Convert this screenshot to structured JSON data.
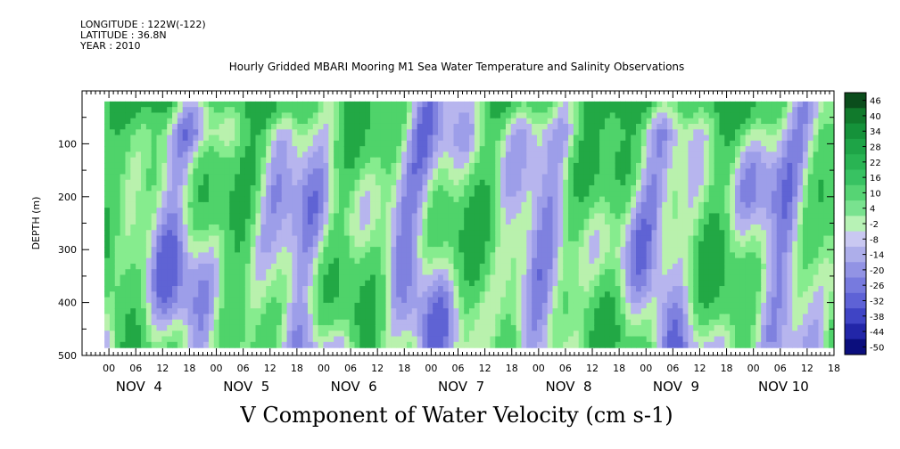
{
  "meta": {
    "longitude": "LONGITUDE : 122W(-122)",
    "latitude": "LATITUDE : 36.8N",
    "year": "YEAR : 2010"
  },
  "chart_data": {
    "type": "heatmap",
    "title": "Hourly Gridded MBARI Mooring M1 Sea Water Temperature and Salinity Observations",
    "xlabel": "V Component of Water Velocity (cm s-1)",
    "ylabel": "DEPTH (m)",
    "y_axis": {
      "range": [
        500,
        0
      ],
      "ticks": [
        100,
        200,
        300,
        400,
        500
      ],
      "ticklabels": [
        "100",
        "200",
        "300",
        "400",
        "500"
      ]
    },
    "x_axis": {
      "hour_ticks": [
        "00",
        "06",
        "12",
        "18",
        "00",
        "06",
        "12",
        "18",
        "00",
        "06",
        "12",
        "18",
        "00",
        "06",
        "12",
        "18",
        "00",
        "06",
        "12",
        "18",
        "00",
        "06",
        "12",
        "18",
        "00",
        "06",
        "12",
        "18"
      ],
      "day_labels": [
        "NOV  4",
        "NOV  5",
        "NOV  6",
        "NOV  7",
        "NOV  8",
        "NOV  9",
        "NOV 10"
      ]
    },
    "colorbar": {
      "labels": [
        "46",
        "40",
        "34",
        "28",
        "22",
        "16",
        "10",
        "4",
        "-2",
        "-8",
        "-14",
        "-20",
        "-26",
        "-32",
        "-38",
        "-44",
        "-50"
      ],
      "range": [
        -50,
        46
      ]
    },
    "data_range": {
      "time_start": "NOV 4 05:00",
      "time_end": "NOV 10 23:00",
      "depth_min": 20,
      "depth_max": 485
    }
  }
}
